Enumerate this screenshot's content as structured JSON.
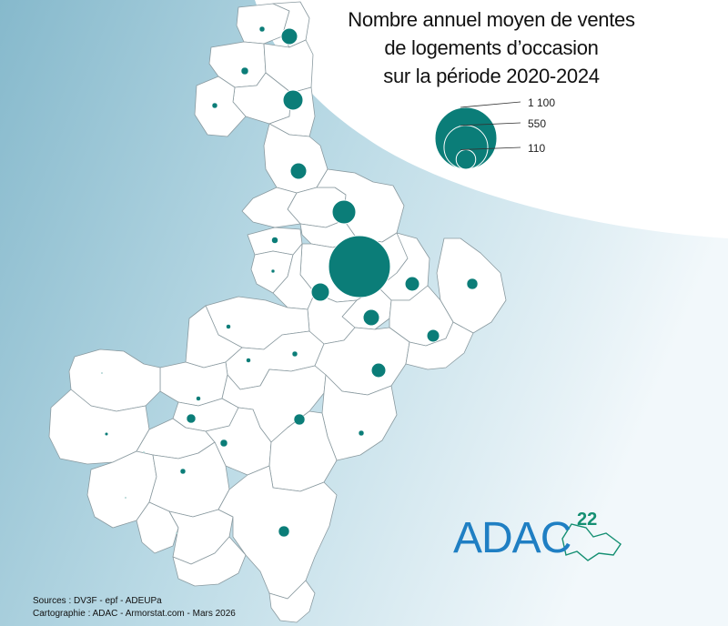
{
  "title": {
    "line1": "Nombre annuel moyen de ventes",
    "line2": "de logements d’occasion",
    "line3": "sur la période 2020-2024"
  },
  "legend": {
    "items": [
      {
        "label": "1 100",
        "value": 1100
      },
      {
        "label": "550",
        "value": 550
      },
      {
        "label": "110",
        "value": 110
      }
    ]
  },
  "credits": {
    "sources": "Sources : DV3F - epf - ADEUPa",
    "cartography": "Cartographie : ADAC - Armorstat.com - Mars 2026"
  },
  "logo": {
    "text": "ADAC",
    "number": "22"
  },
  "colors": {
    "symbol": "#0b7d78",
    "commune_fill": "#ffffff",
    "commune_stroke": "#8a9aa0",
    "sea_dark": "#8fbfd0",
    "sea_light": "#eef6f9",
    "logo_blue": "#1f7fc3",
    "logo_green": "#148f72"
  }
}
